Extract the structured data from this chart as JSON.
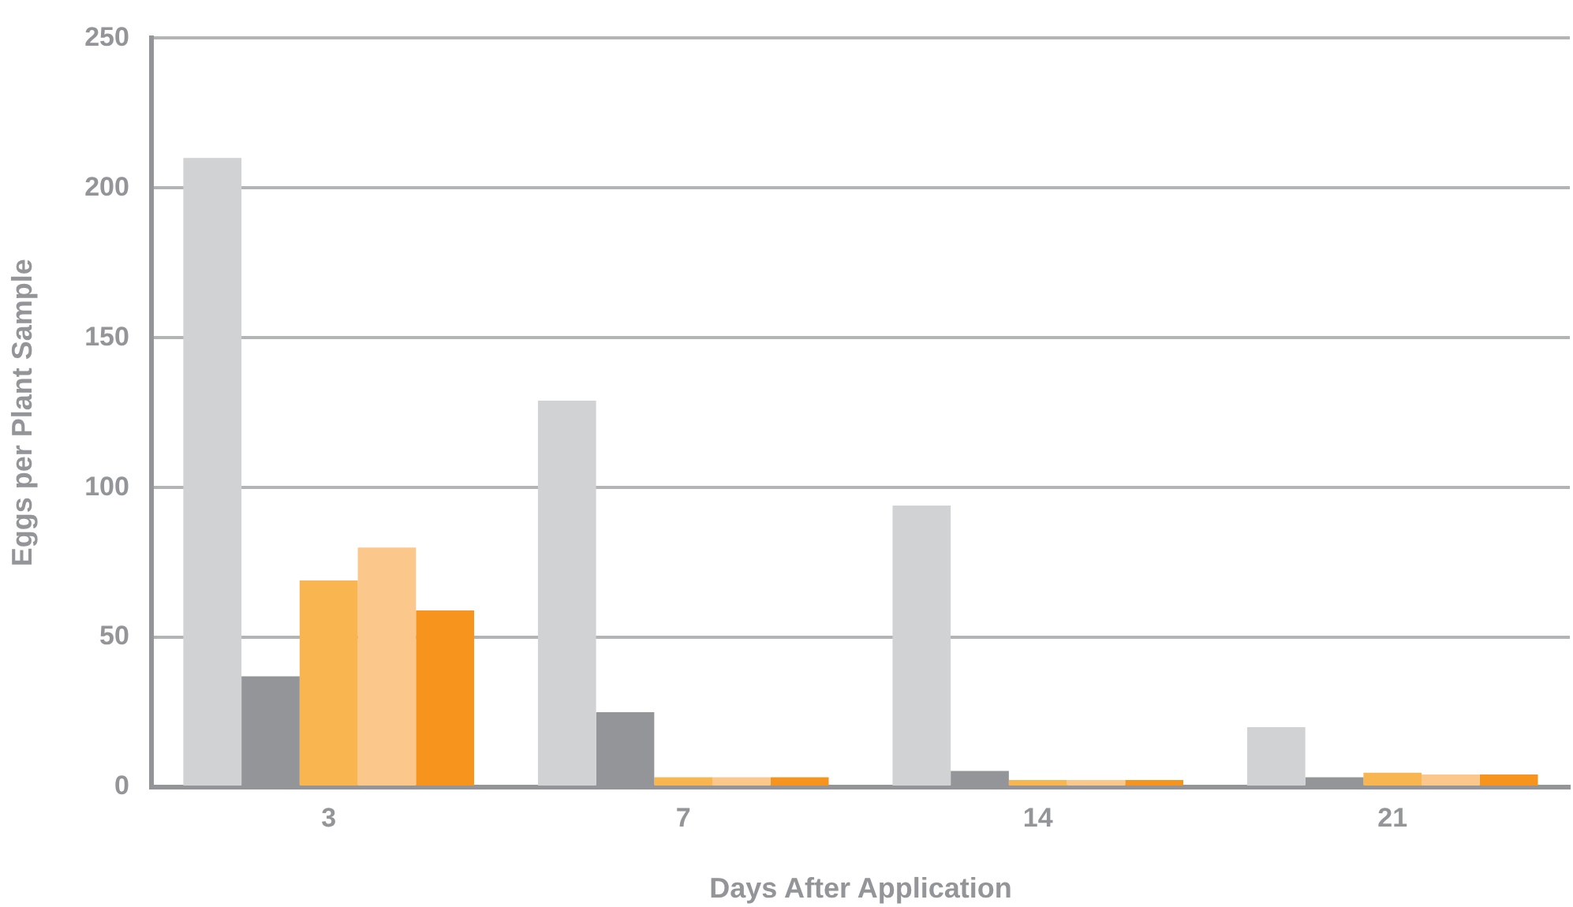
{
  "chart_data": {
    "type": "bar",
    "xlabel": "Days After Application",
    "ylabel": "Eggs per Plant Sample",
    "categories": [
      "3",
      "7",
      "14",
      "21"
    ],
    "series": [
      {
        "color": "#d1d2d4",
        "values": [
          210,
          129,
          94,
          20
        ]
      },
      {
        "color": "#939598",
        "values": [
          37,
          25,
          5.4,
          3.3
        ]
      },
      {
        "color": "#f9b54f",
        "values": [
          69,
          3.3,
          2.4,
          4.8
        ]
      },
      {
        "color": "#fcc78a",
        "values": [
          80,
          3.3,
          2.4,
          4.2
        ]
      },
      {
        "color": "#f7941d",
        "values": [
          59,
          3.3,
          2.4,
          4.2
        ]
      }
    ],
    "ylim": [
      0,
      250
    ],
    "yticks": [
      0,
      50,
      100,
      150,
      200,
      250
    ],
    "grid": "y",
    "legend": false
  }
}
